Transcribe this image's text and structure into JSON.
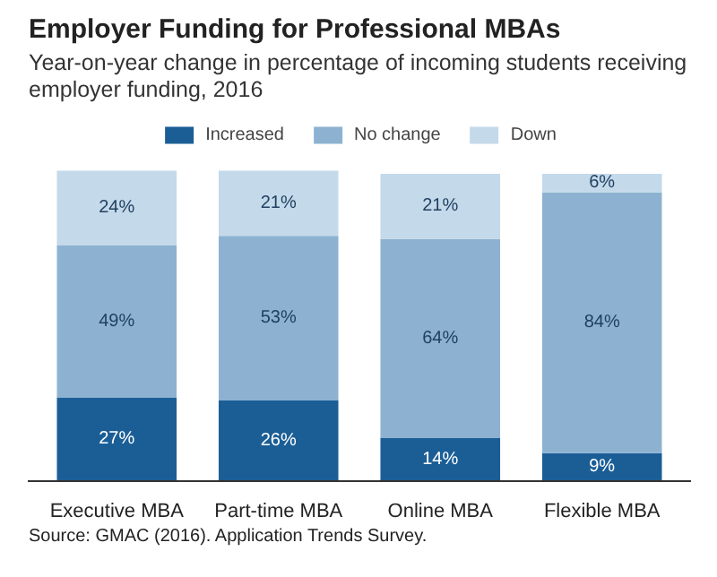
{
  "chart_data": {
    "type": "bar",
    "title": "Employer Funding for Professional MBAs",
    "subtitle": "Year-on-year change in percentage of incoming students receiving\nemployer funding, 2016",
    "categories": [
      "Executive MBA",
      "Part-time MBA",
      "Online MBA",
      "Flexible MBA"
    ],
    "stacked": true,
    "legend": "top",
    "series": [
      {
        "name": "Increased",
        "color": "#1b5e96",
        "values": [
          27,
          26,
          14,
          9
        ],
        "value_labels": [
          "27%",
          "26%",
          "14%",
          "9%"
        ]
      },
      {
        "name": "No change",
        "color": "#8db2d1",
        "values": [
          49,
          53,
          64,
          84
        ],
        "value_labels": [
          "49%",
          "53%",
          "64%",
          "84%"
        ]
      },
      {
        "name": "Down",
        "color": "#c4d9ea",
        "values": [
          24,
          21,
          21,
          6
        ],
        "value_labels": [
          "24%",
          "21%",
          "21%",
          "6%"
        ]
      }
    ],
    "annotations": [
      "Source: GMAC (2016). Application Trends Survey."
    ]
  }
}
